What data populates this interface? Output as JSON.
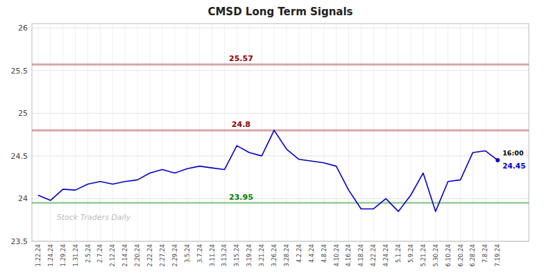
{
  "chart_data": {
    "type": "line",
    "title": "CMSD Long Term Signals",
    "watermark": "Stock Traders Daily",
    "color": "#0000cc",
    "grid": true,
    "ylim": [
      23.5,
      26.05
    ],
    "yticks": [
      23.5,
      24,
      24.5,
      25,
      25.5,
      26
    ],
    "categories": [
      "1.22.24",
      "1.24.24",
      "1.29.24",
      "1.31.24",
      "2.5.24",
      "2.7.24",
      "2.12.24",
      "2.14.24",
      "2.20.24",
      "2.22.24",
      "2.27.24",
      "2.29.24",
      "3.5.24",
      "3.7.24",
      "3.11.24",
      "3.13.24",
      "3.15.24",
      "3.19.24",
      "3.21.24",
      "3.26.24",
      "3.28.24",
      "4.2.24",
      "4.4.24",
      "4.8.24",
      "4.10.24",
      "4.16.24",
      "4.18.24",
      "4.22.24",
      "4.24.24",
      "5.1.24",
      "5.9.24",
      "5.21.24",
      "5.30.24",
      "6.10.24",
      "6.20.24",
      "6.28.24",
      "7.8.24",
      "7.19.24"
    ],
    "values": [
      24.04,
      23.98,
      24.11,
      24.1,
      24.17,
      24.2,
      24.17,
      24.2,
      24.22,
      24.3,
      24.34,
      24.3,
      24.35,
      24.38,
      24.36,
      24.34,
      24.62,
      24.54,
      24.5,
      24.8,
      24.58,
      24.46,
      24.44,
      24.42,
      24.38,
      24.1,
      23.88,
      23.88,
      24.0,
      23.85,
      24.04,
      24.3,
      23.85,
      24.2,
      24.22,
      24.54,
      24.56,
      24.45
    ],
    "reference_lines": [
      {
        "value": 25.57,
        "color": "#8b0000"
      },
      {
        "value": 24.8,
        "color": "#8b0000"
      },
      {
        "value": 23.95,
        "color": "#008000"
      }
    ],
    "endpoint": {
      "value": 24.45,
      "label": "16:00"
    }
  }
}
